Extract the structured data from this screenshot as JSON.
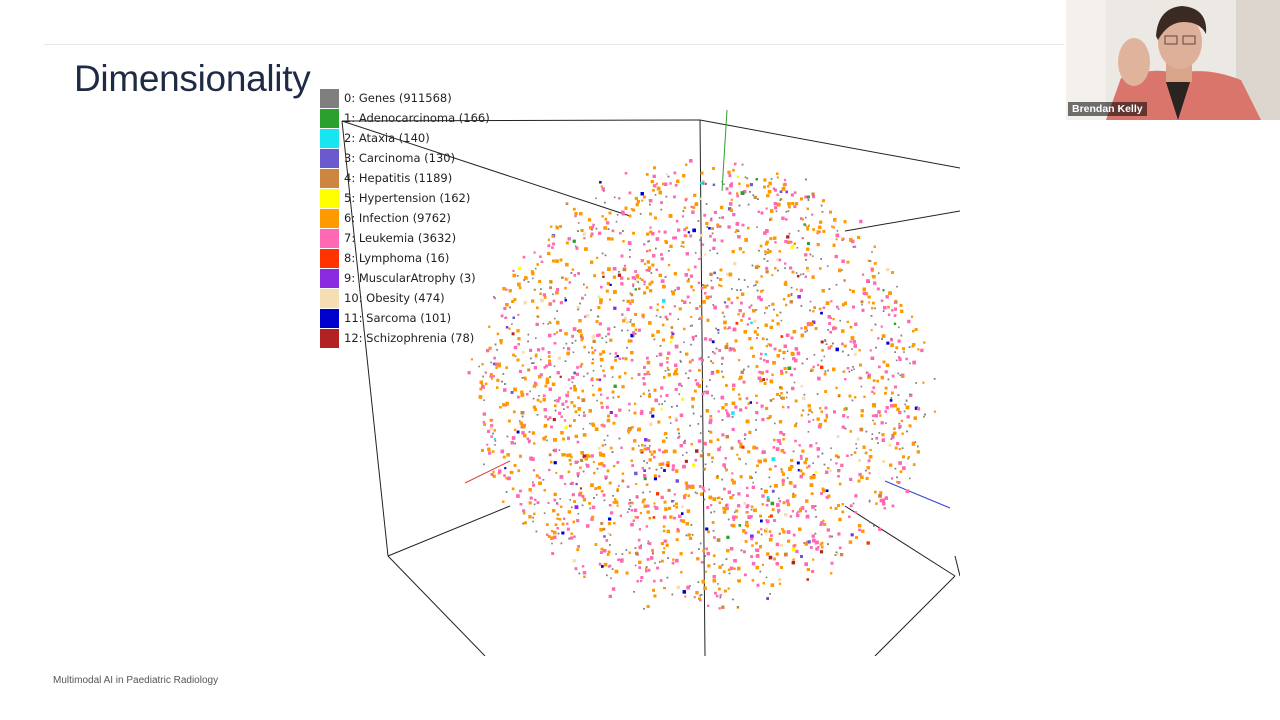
{
  "slide": {
    "title": "Dimensionality",
    "footer": "Multimodal AI in Paediatric Radiology"
  },
  "webcam": {
    "participant_name": "Brendan Kelly"
  },
  "chart_data": {
    "type": "scatter",
    "projection": "3d",
    "title": "",
    "legend_position": "top-left",
    "series": [
      {
        "id": 0,
        "name": "Genes",
        "count": 911568,
        "label": "0: Genes (911568)",
        "color": "#7f7f7f",
        "share": 0.22
      },
      {
        "id": 1,
        "name": "Adenocarcinoma",
        "count": 166,
        "label": "1: Adenocarcinoma (166)",
        "color": "#2ca02c",
        "share": 0.005
      },
      {
        "id": 2,
        "name": "Ataxia",
        "count": 140,
        "label": "2: Ataxia (140)",
        "color": "#17e5f0",
        "share": 0.005
      },
      {
        "id": 3,
        "name": "Carcinoma",
        "count": 130,
        "label": "3: Carcinoma (130)",
        "color": "#6a5acd",
        "share": 0.01
      },
      {
        "id": 4,
        "name": "Hepatitis",
        "count": 1189,
        "label": "4: Hepatitis (1189)",
        "color": "#cd853f",
        "share": 0.02
      },
      {
        "id": 5,
        "name": "Hypertension",
        "count": 162,
        "label": "5: Hypertension (162)",
        "color": "#ffff00",
        "share": 0.005
      },
      {
        "id": 6,
        "name": "Infection",
        "count": 9762,
        "label": "6: Infection (9762)",
        "color": "#ff9900",
        "share": 0.38
      },
      {
        "id": 7,
        "name": "Leukemia",
        "count": 3632,
        "label": "7: Leukemia (3632)",
        "color": "#ff69b4",
        "share": 0.3
      },
      {
        "id": 8,
        "name": "Lymphoma",
        "count": 16,
        "label": "8: Lymphoma (16)",
        "color": "#ff3300",
        "share": 0.005
      },
      {
        "id": 9,
        "name": "MuscularAtrophy",
        "count": 3,
        "label": "9: MuscularAtrophy (3)",
        "color": "#8a2be2",
        "share": 0.004
      },
      {
        "id": 10,
        "name": "Obesity",
        "count": 474,
        "label": "10: Obesity (474)",
        "color": "#f5deb3",
        "share": 0.02
      },
      {
        "id": 11,
        "name": "Sarcoma",
        "count": 101,
        "label": "11: Sarcoma (101)",
        "color": "#0000cd",
        "share": 0.012
      },
      {
        "id": 12,
        "name": "Schizophrenia",
        "count": 78,
        "label": "12: Schizophrenia (78)",
        "color": "#b22222",
        "share": 0.008
      }
    ]
  }
}
